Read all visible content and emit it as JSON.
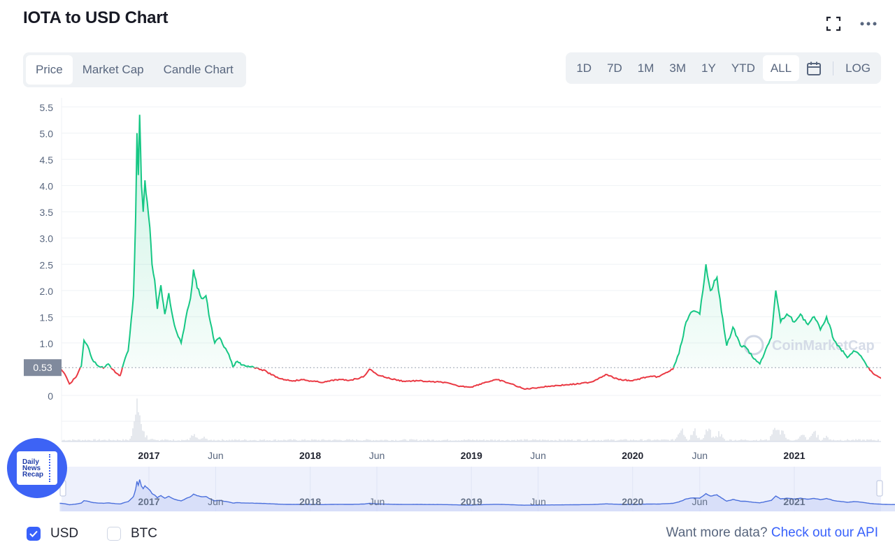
{
  "page": {
    "title": "IOTA to USD Chart"
  },
  "tabs": [
    {
      "label": "Price",
      "active": true
    },
    {
      "label": "Market Cap",
      "active": false
    },
    {
      "label": "Candle Chart",
      "active": false
    }
  ],
  "ranges": [
    {
      "label": "1D",
      "active": false
    },
    {
      "label": "7D",
      "active": false
    },
    {
      "label": "1M",
      "active": false
    },
    {
      "label": "3M",
      "active": false
    },
    {
      "label": "1Y",
      "active": false
    },
    {
      "label": "YTD",
      "active": false
    },
    {
      "label": "ALL",
      "active": true
    }
  ],
  "scale_toggle": "LOG",
  "icons": {
    "fullscreen": "fullscreen-icon",
    "more": "more-options-icon",
    "calendar": "calendar-icon"
  },
  "colors": {
    "up": "#16c784",
    "down": "#ea3943",
    "accent": "#3861fb",
    "navigator": "#4a6fdc"
  },
  "chart_data": {
    "type": "line",
    "y_unit": "USD",
    "ylim": [
      0,
      5.5
    ],
    "yticks": [
      0,
      1.0,
      1.5,
      2.0,
      2.5,
      3.0,
      3.5,
      4.0,
      4.5,
      5.0,
      5.5
    ],
    "ytick_labels": [
      "0",
      "1.0",
      "1.5",
      "2.0",
      "2.5",
      "3.0",
      "3.5",
      "4.0",
      "4.5",
      "5.0",
      "5.5"
    ],
    "x_tick_labels": [
      "2017",
      "Jun",
      "2018",
      "Jun",
      "2019",
      "Jun",
      "2020",
      "Jun",
      "2021"
    ],
    "x_tick_dates": [
      "2017-01-01",
      "2017-06-01",
      "2018-01-01",
      "2018-06-01",
      "2019-01-01",
      "2019-06-01",
      "2020-01-01",
      "2020-06-01",
      "2021-01-01"
    ],
    "reference_price": 0.53,
    "reference_label": "0.53",
    "color_above": "#16c784",
    "color_below": "#ea3943",
    "watermark": "CoinMarketCap",
    "series": [
      {
        "points": [
          [
            "2016-06-13",
            0.52
          ],
          [
            "2016-06-25",
            0.4
          ],
          [
            "2016-07-05",
            0.22
          ],
          [
            "2016-07-20",
            0.35
          ],
          [
            "2016-08-01",
            0.56
          ],
          [
            "2016-08-07",
            1.05
          ],
          [
            "2016-08-15",
            0.95
          ],
          [
            "2016-08-25",
            0.7
          ],
          [
            "2016-09-05",
            0.58
          ],
          [
            "2016-09-20",
            0.52
          ],
          [
            "2016-10-01",
            0.6
          ],
          [
            "2016-10-10",
            0.5
          ],
          [
            "2016-10-20",
            0.42
          ],
          [
            "2016-10-28",
            0.38
          ],
          [
            "2016-11-05",
            0.62
          ],
          [
            "2016-11-15",
            0.85
          ],
          [
            "2016-11-22",
            1.45
          ],
          [
            "2016-11-27",
            1.9
          ],
          [
            "2016-12-02",
            3.4
          ],
          [
            "2016-12-05",
            5.0
          ],
          [
            "2016-12-08",
            4.2
          ],
          [
            "2016-12-11",
            5.35
          ],
          [
            "2016-12-15",
            4.0
          ],
          [
            "2016-12-19",
            3.5
          ],
          [
            "2016-12-23",
            4.1
          ],
          [
            "2016-12-28",
            3.7
          ],
          [
            "2017-01-03",
            3.2
          ],
          [
            "2017-01-08",
            2.5
          ],
          [
            "2017-01-14",
            2.2
          ],
          [
            "2017-01-20",
            1.65
          ],
          [
            "2017-01-28",
            2.1
          ],
          [
            "2017-02-06",
            1.55
          ],
          [
            "2017-02-15",
            1.95
          ],
          [
            "2017-02-25",
            1.45
          ],
          [
            "2017-03-05",
            1.2
          ],
          [
            "2017-03-15",
            1.0
          ],
          [
            "2017-03-25",
            1.45
          ],
          [
            "2017-04-05",
            1.85
          ],
          [
            "2017-04-12",
            2.4
          ],
          [
            "2017-04-20",
            2.05
          ],
          [
            "2017-04-30",
            1.85
          ],
          [
            "2017-05-10",
            1.9
          ],
          [
            "2017-05-20",
            1.4
          ],
          [
            "2017-05-30",
            1.0
          ],
          [
            "2017-06-10",
            1.1
          ],
          [
            "2017-06-20",
            0.92
          ],
          [
            "2017-07-01",
            0.78
          ],
          [
            "2017-07-10",
            0.55
          ],
          [
            "2017-07-20",
            0.65
          ],
          [
            "2017-08-01",
            0.58
          ],
          [
            "2017-08-20",
            0.55
          ],
          [
            "2017-09-05",
            0.52
          ],
          [
            "2017-09-25",
            0.45
          ],
          [
            "2017-10-15",
            0.35
          ],
          [
            "2017-11-05",
            0.3
          ],
          [
            "2017-11-25",
            0.28
          ],
          [
            "2017-12-15",
            0.3
          ],
          [
            "2018-01-05",
            0.27
          ],
          [
            "2018-02-01",
            0.25
          ],
          [
            "2018-03-01",
            0.3
          ],
          [
            "2018-04-01",
            0.29
          ],
          [
            "2018-05-01",
            0.35
          ],
          [
            "2018-05-15",
            0.5
          ],
          [
            "2018-06-01",
            0.4
          ],
          [
            "2018-07-01",
            0.32
          ],
          [
            "2018-08-01",
            0.27
          ],
          [
            "2018-09-01",
            0.28
          ],
          [
            "2018-10-01",
            0.26
          ],
          [
            "2018-11-01",
            0.25
          ],
          [
            "2018-12-01",
            0.18
          ],
          [
            "2019-01-01",
            0.16
          ],
          [
            "2019-02-01",
            0.25
          ],
          [
            "2019-03-01",
            0.3
          ],
          [
            "2019-04-01",
            0.22
          ],
          [
            "2019-05-01",
            0.12
          ],
          [
            "2019-06-01",
            0.15
          ],
          [
            "2019-07-01",
            0.18
          ],
          [
            "2019-08-01",
            0.2
          ],
          [
            "2019-09-01",
            0.22
          ],
          [
            "2019-10-01",
            0.26
          ],
          [
            "2019-11-01",
            0.4
          ],
          [
            "2019-12-01",
            0.3
          ],
          [
            "2020-01-01",
            0.28
          ],
          [
            "2020-02-01",
            0.35
          ],
          [
            "2020-03-01",
            0.36
          ],
          [
            "2020-04-01",
            0.5
          ],
          [
            "2020-04-15",
            0.8
          ],
          [
            "2020-05-01",
            1.4
          ],
          [
            "2020-05-15",
            1.6
          ],
          [
            "2020-06-01",
            1.55
          ],
          [
            "2020-06-15",
            2.5
          ],
          [
            "2020-06-25",
            2.0
          ],
          [
            "2020-07-10",
            2.25
          ],
          [
            "2020-07-20",
            1.6
          ],
          [
            "2020-08-01",
            0.95
          ],
          [
            "2020-08-15",
            1.3
          ],
          [
            "2020-09-01",
            0.95
          ],
          [
            "2020-09-15",
            0.9
          ],
          [
            "2020-10-01",
            0.7
          ],
          [
            "2020-10-15",
            0.6
          ],
          [
            "2020-11-01",
            0.95
          ],
          [
            "2020-11-10",
            1.1
          ],
          [
            "2020-11-20",
            2.0
          ],
          [
            "2020-12-01",
            1.4
          ],
          [
            "2020-12-15",
            1.55
          ],
          [
            "2021-01-01",
            1.4
          ],
          [
            "2021-01-15",
            1.55
          ],
          [
            "2021-02-01",
            1.35
          ],
          [
            "2021-02-15",
            1.5
          ],
          [
            "2021-03-01",
            1.25
          ],
          [
            "2021-03-15",
            1.5
          ],
          [
            "2021-04-01",
            1.05
          ],
          [
            "2021-04-15",
            0.9
          ],
          [
            "2021-05-01",
            0.72
          ],
          [
            "2021-05-15",
            0.85
          ],
          [
            "2021-06-01",
            0.75
          ],
          [
            "2021-06-15",
            0.55
          ],
          [
            "2021-07-01",
            0.4
          ],
          [
            "2021-07-20",
            0.3
          ],
          [
            "2021-08-10",
            0.26
          ],
          [
            "2021-09-01",
            0.25
          ],
          [
            "2021-09-20",
            0.28
          ],
          [
            "2021-10-10",
            0.24
          ]
        ]
      }
    ],
    "volume": {
      "note": "relative trading volume",
      "spikes": [
        [
          "2016-12-02",
          0.45
        ],
        [
          "2016-12-05",
          1.0
        ],
        [
          "2016-12-08",
          0.6
        ],
        [
          "2016-12-11",
          0.55
        ],
        [
          "2016-12-15",
          0.35
        ],
        [
          "2016-12-20",
          0.25
        ],
        [
          "2017-01-10",
          0.12
        ],
        [
          "2017-04-12",
          0.18
        ],
        [
          "2017-05-05",
          0.12
        ],
        [
          "2020-04-20",
          0.45
        ],
        [
          "2020-05-20",
          0.3
        ],
        [
          "2020-06-20",
          0.35
        ],
        [
          "2020-07-15",
          0.25
        ],
        [
          "2020-11-20",
          0.48
        ],
        [
          "2020-12-05",
          0.25
        ],
        [
          "2021-01-20",
          0.18
        ],
        [
          "2021-02-15",
          0.3
        ],
        [
          "2021-03-15",
          0.15
        ]
      ]
    }
  },
  "footer": {
    "currencies": [
      {
        "label": "USD",
        "checked": true
      },
      {
        "label": "BTC",
        "checked": false
      }
    ],
    "api_prefix": "Want more data?",
    "api_link": "Check out our API"
  },
  "overlay_badge": {
    "lines": [
      "Daily",
      "News",
      "Recap"
    ]
  }
}
